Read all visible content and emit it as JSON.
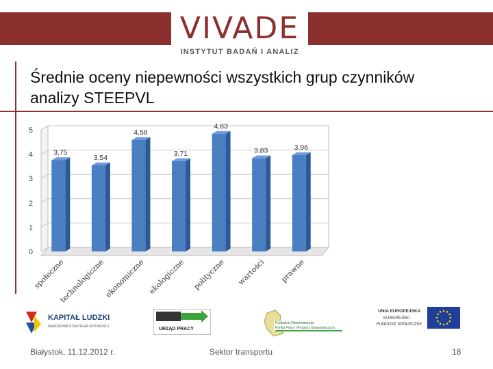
{
  "header": {
    "brand": "VIVADE",
    "subbrand": "INSTYTUT BADAŃ I ANALIZ"
  },
  "slide": {
    "title_line1": "Średnie oceny niepewności wszystkich grup czynników",
    "title_line2": "analizy STEEPVL"
  },
  "chart_data": {
    "type": "bar",
    "categories": [
      "społeczne",
      "technologiczne",
      "ekonomiczne",
      "ekologiczne",
      "polityczne",
      "wartości",
      "prawne"
    ],
    "values": [
      3.75,
      3.54,
      4.58,
      3.71,
      4.83,
      3.83,
      3.96
    ],
    "value_labels": [
      "3,75",
      "3,54",
      "4,58",
      "3,71",
      "4,83",
      "3,83",
      "3,96"
    ],
    "yticks": [
      0,
      1,
      2,
      3,
      4,
      5
    ],
    "ylim": [
      0,
      5
    ],
    "grid": true,
    "bar_color": "#4a7fc1"
  },
  "logos": {
    "kapital_title": "KAPITAŁ LUDZKI",
    "kapital_sub": "NARODOWA STRATEGIA SPÓJNOŚCI",
    "urzad": "URZĄD PRACY",
    "obserwatorium_1": "Podlaskie Obserwatorium",
    "obserwatorium_2": "Rynku Pracy i Prognoz Gospodarczych",
    "ue_1": "UNIA EUROPEJSKA",
    "ue_2": "EUROPEJSKI",
    "ue_3": "FUNDUSZ SPOŁECZNY"
  },
  "footer": {
    "date": "Białystok, 11.12.2012 r.",
    "center": "Sektor transportu",
    "page": "18"
  }
}
